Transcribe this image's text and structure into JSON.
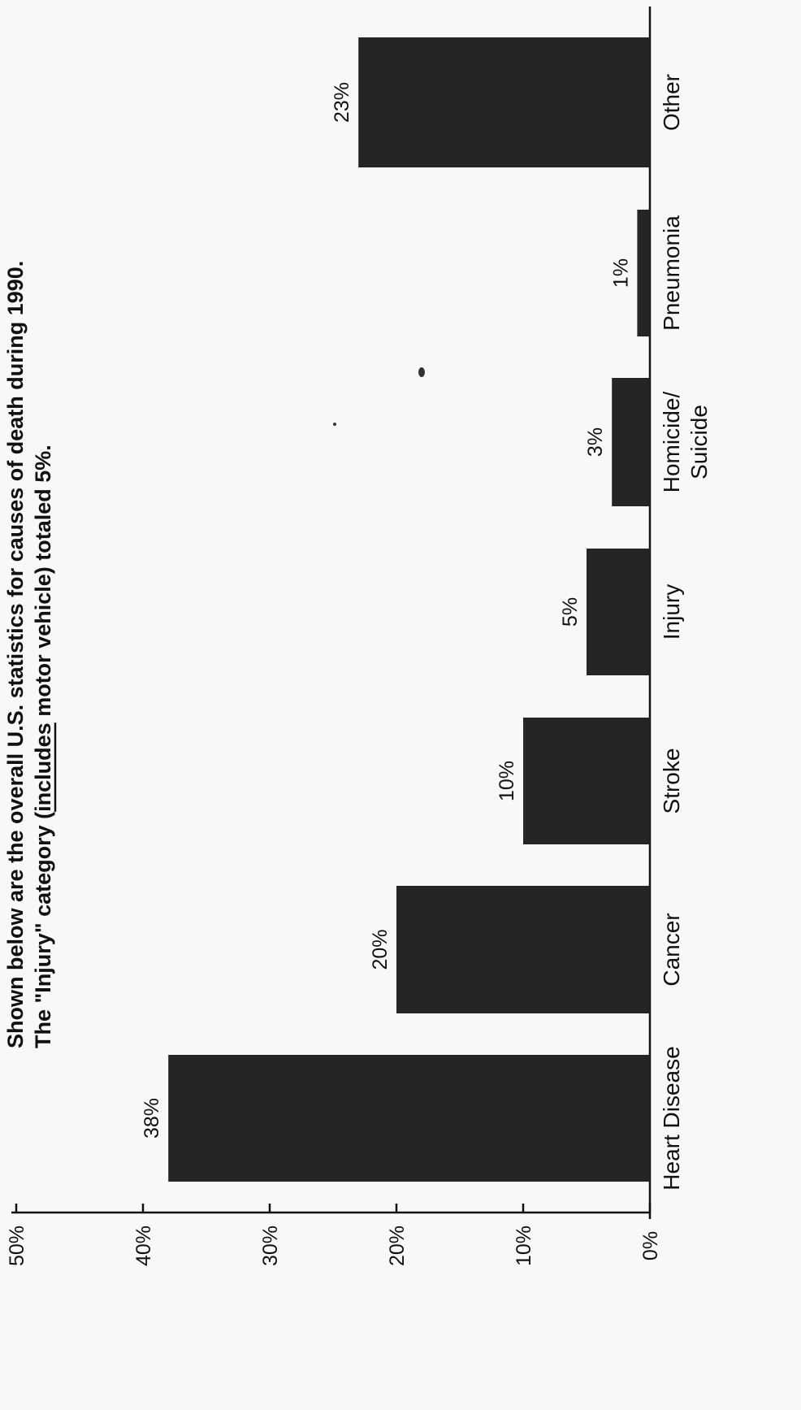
{
  "chart_data": {
    "type": "bar",
    "orientation": "rotated-90-ccw",
    "title_lines": [
      "Shown below are the overall U.S. statistics for causes of death during 1990.",
      "The \"Injury\" category (includes motor vehicle) totaled 5%."
    ],
    "title_underlined_word": "includes",
    "categories": [
      "Heart Disease",
      "Cancer",
      "Stroke",
      "Injury",
      "Homicide/ Suicide",
      "Pneumonia",
      "Other"
    ],
    "category_label_lines": [
      [
        "Heart Disease"
      ],
      [
        "Cancer"
      ],
      [
        "Stroke"
      ],
      [
        "Injury"
      ],
      [
        "Homicide/",
        "Suicide"
      ],
      [
        "Pneumonia"
      ],
      [
        "Other"
      ]
    ],
    "values": [
      38,
      20,
      10,
      5,
      3,
      1,
      23
    ],
    "data_labels": [
      "38%",
      "20%",
      "10%",
      "5%",
      "3%",
      "1%",
      "23%"
    ],
    "ylim": [
      0,
      50
    ],
    "yticks": [
      0,
      10,
      20,
      30,
      40,
      50
    ],
    "ytick_labels": [
      "0%",
      "10%",
      "20%",
      "30%",
      "40%",
      "50%"
    ],
    "xlabel": "",
    "ylabel": "",
    "grid": false,
    "legend": "none",
    "bar_color": "#252525"
  }
}
